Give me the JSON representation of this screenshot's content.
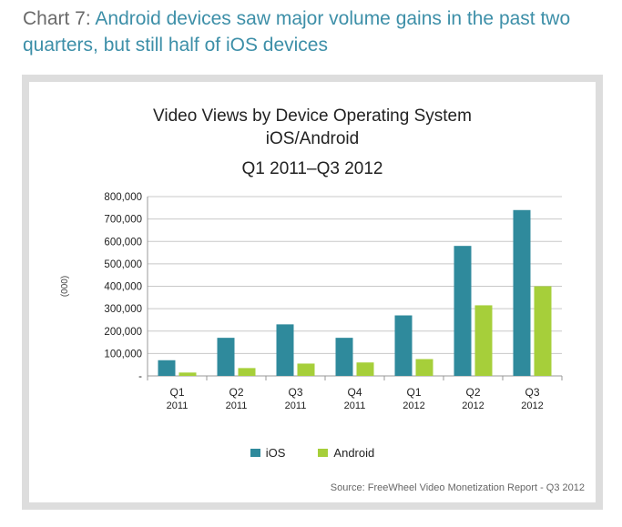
{
  "heading": {
    "prefix": "Chart 7:",
    "text": "Android devices saw major volume gains in the past two quarters, but still half of iOS devices"
  },
  "source": "Source: FreeWheel Video Monetization Report - Q3 2012",
  "colors": {
    "ios": "#2f8a9c",
    "android": "#a6cf3a",
    "heading": "#3d8fa8"
  },
  "chart_data": {
    "type": "bar",
    "title_lines": [
      "Video Views by Device Operating System",
      "iOS/Android",
      "Q1 2011–Q3 2012"
    ],
    "ylabel": "(000)",
    "xlabel": "",
    "ylim": [
      0,
      800000
    ],
    "ytick_values": [
      0,
      100000,
      200000,
      300000,
      400000,
      500000,
      600000,
      700000,
      800000
    ],
    "ytick_labels": [
      "-",
      "100,000",
      "200,000",
      "300,000",
      "400,000",
      "500,000",
      "600,000",
      "700,000",
      "800,000"
    ],
    "categories": [
      {
        "q": "Q1",
        "year": "2011"
      },
      {
        "q": "Q2",
        "year": "2011"
      },
      {
        "q": "Q3",
        "year": "2011"
      },
      {
        "q": "Q4",
        "year": "2011"
      },
      {
        "q": "Q1",
        "year": "2012"
      },
      {
        "q": "Q2",
        "year": "2012"
      },
      {
        "q": "Q3",
        "year": "2012"
      }
    ],
    "series": [
      {
        "name": "iOS",
        "color": "#2f8a9c",
        "values": [
          70000,
          170000,
          230000,
          170000,
          270000,
          580000,
          740000
        ]
      },
      {
        "name": "Android",
        "color": "#a6cf3a",
        "values": [
          15000,
          35000,
          55000,
          60000,
          75000,
          315000,
          400000
        ]
      }
    ],
    "grid": true,
    "legend": "bottom"
  }
}
